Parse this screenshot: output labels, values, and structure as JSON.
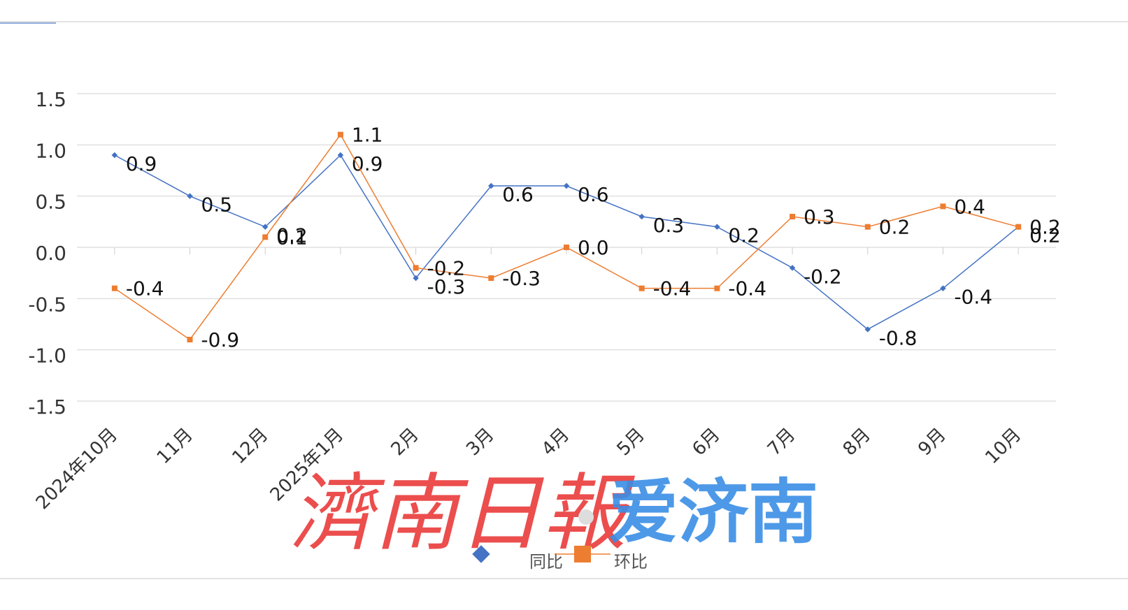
{
  "chart_data": {
    "type": "line",
    "categories": [
      "2024年10月",
      "11月",
      "12月",
      "2025年1月",
      "2月",
      "3月",
      "4月",
      "5月",
      "6月",
      "7月",
      "8月",
      "9月",
      "10月"
    ],
    "series": [
      {
        "name": "同比",
        "color": "#4472c4",
        "marker": "diamond",
        "values": [
          0.9,
          0.5,
          0.2,
          0.9,
          -0.3,
          0.6,
          0.6,
          0.3,
          0.2,
          -0.2,
          -0.8,
          -0.4,
          0.2
        ],
        "value_labels": [
          "0.9",
          "0.5",
          "0.2",
          "0.9",
          "-0.3",
          "0.6",
          "0.6",
          "0.3",
          "0.2",
          "-0.2",
          "-0.8",
          "-0.4",
          "0.2"
        ]
      },
      {
        "name": "环比",
        "color": "#ed7d31",
        "marker": "square",
        "values": [
          -0.4,
          -0.9,
          0.1,
          1.1,
          -0.2,
          -0.3,
          0,
          -0.4,
          -0.4,
          0.3,
          0.2,
          0.4,
          0.2
        ],
        "value_labels": [
          "-0.4",
          "-0.9",
          "0.1",
          "1.1",
          "-0.2",
          "-0.3",
          "0.0",
          "-0.4",
          "-0.4",
          "0.3",
          "0.2",
          "0.4",
          "0.2"
        ]
      }
    ],
    "ylim": [
      -1.5,
      1.5
    ],
    "yticks": [
      {
        "value": -1.5,
        "label": "-1.5"
      },
      {
        "value": -1,
        "label": "-1.0"
      },
      {
        "value": -0.5,
        "label": "-0.5"
      },
      {
        "value": 0,
        "label": "0.0"
      },
      {
        "value": 0.5,
        "label": "0.5"
      },
      {
        "value": 1,
        "label": "1.0"
      },
      {
        "value": 1.5,
        "label": "1.5"
      }
    ],
    "grid": true,
    "legend": "bottom",
    "watermark": [
      "濟南日報",
      "爱济南"
    ]
  }
}
